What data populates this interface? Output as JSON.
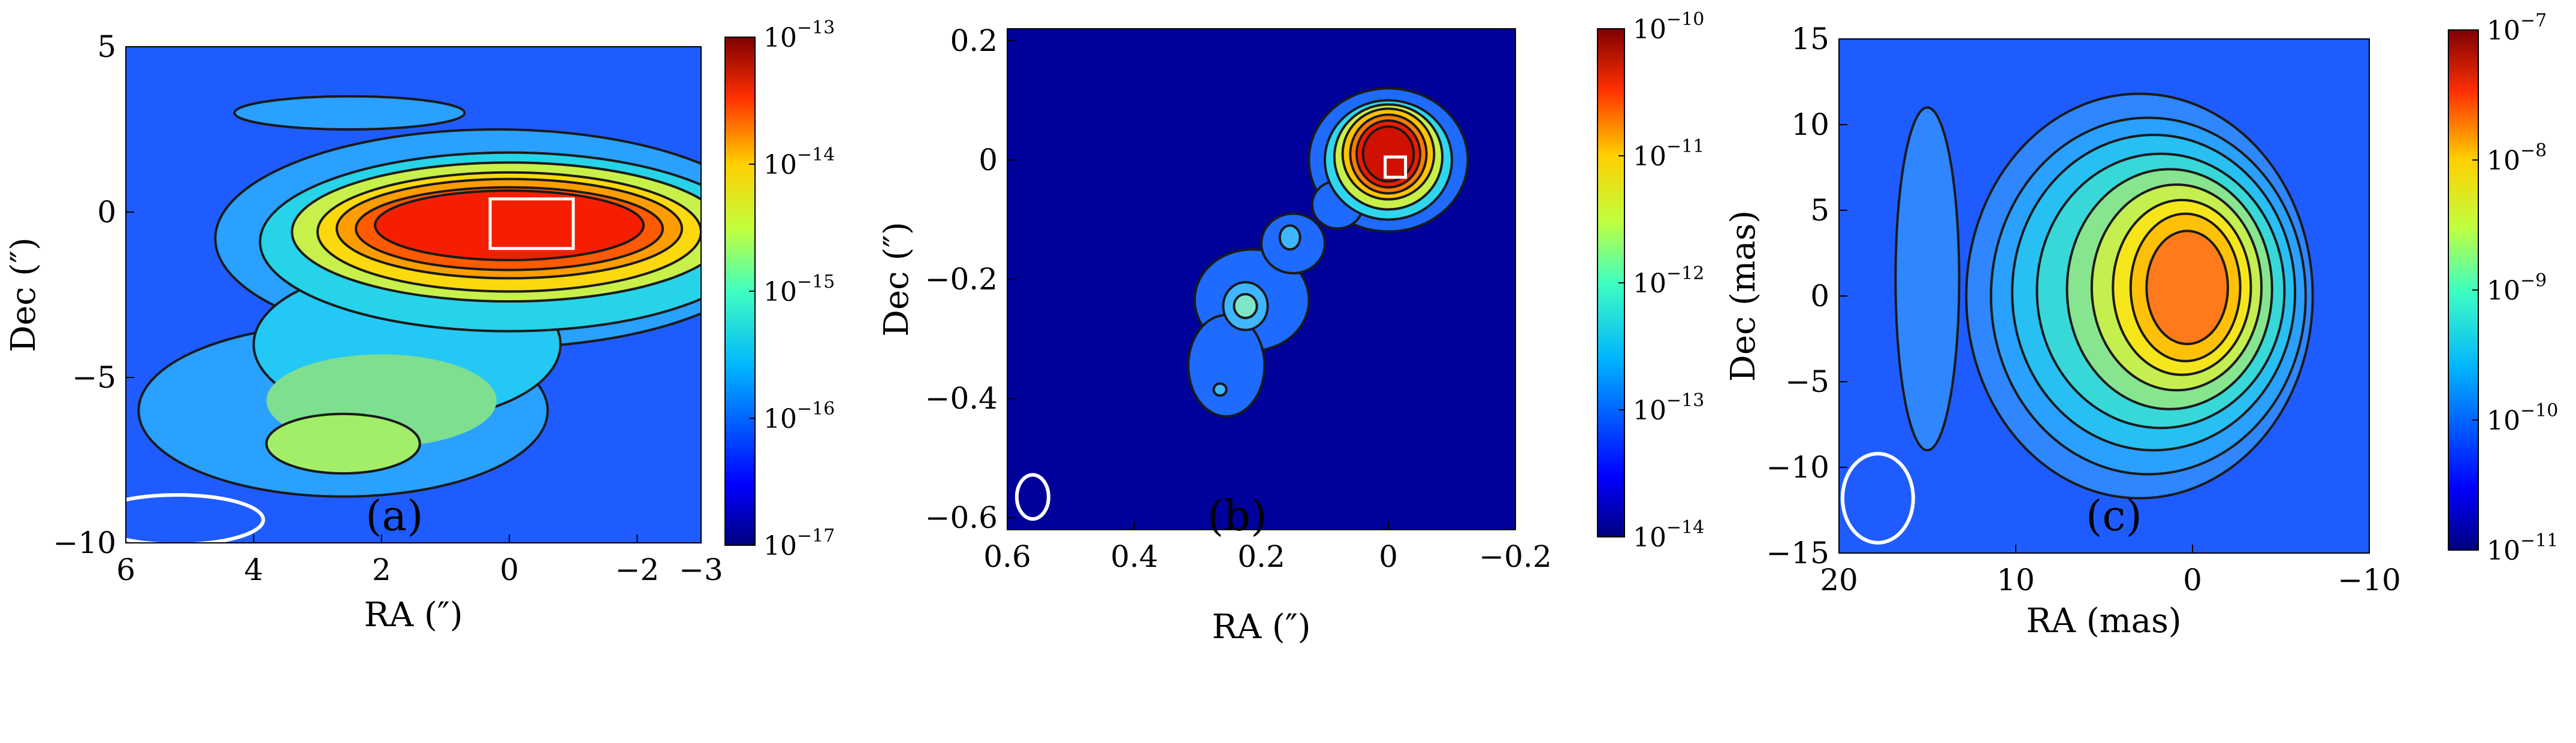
{
  "figure": {
    "panels": [
      {
        "id": "a",
        "label": "(a)"
      },
      {
        "id": "b",
        "label": "(b)"
      },
      {
        "id": "c",
        "label": "(c)"
      }
    ]
  },
  "chart_data": [
    {
      "type": "heatmap",
      "panel": "(a)",
      "xlabel": "RA (″)",
      "ylabel": "Dec (″)",
      "xlim": [
        6,
        -3
      ],
      "ylim": [
        -10,
        5
      ],
      "xticks": [
        6,
        4,
        2,
        0,
        -2,
        -3
      ],
      "xtick_labels": [
        "6",
        "4",
        "2",
        "0",
        "−2",
        "−3"
      ],
      "yticks": [
        5,
        0,
        -5,
        -10
      ],
      "ytick_labels": [
        "5",
        "0",
        "−5",
        "−10"
      ],
      "colorbar": {
        "scale": "log",
        "min_exp": -17,
        "max_exp": -13,
        "exponents": [
          -17,
          -16,
          -15,
          -14,
          -13
        ],
        "base": "10"
      },
      "background_color": "#1f5cff",
      "beam": {
        "cx": 5.2,
        "cy": -9.3,
        "rx": 1.35,
        "ry": 0.75
      },
      "marker_box": {
        "x": 0.3,
        "y": 0.4,
        "w": 1.3,
        "h": 1.5
      },
      "blobs": [
        {
          "cx": 0.2,
          "cy": -0.8,
          "rx": 4.4,
          "ry": 3.3,
          "color": "#2aa0ff",
          "outline": true
        },
        {
          "cx": 2.6,
          "cy": -6.0,
          "rx": 3.2,
          "ry": 2.6,
          "color": "#2aa0ff",
          "outline": true
        },
        {
          "cx": 2.5,
          "cy": 3.0,
          "rx": 1.8,
          "ry": 0.5,
          "color": "#2aa0ff",
          "outline": true
        },
        {
          "cx": 1.6,
          "cy": -4.0,
          "rx": 2.4,
          "ry": 2.3,
          "color": "#24c8f4",
          "outline": true
        },
        {
          "cx": 0.0,
          "cy": -0.9,
          "rx": 3.9,
          "ry": 2.7,
          "color": "#27d3e8",
          "outline": true
        },
        {
          "cx": 2.0,
          "cy": -5.7,
          "rx": 1.8,
          "ry": 1.4,
          "color": "#7ddf8f",
          "outline": false
        },
        {
          "cx": 2.6,
          "cy": -7.0,
          "rx": 1.2,
          "ry": 0.9,
          "color": "#a2ee69",
          "outline": true
        },
        {
          "cx": 0.0,
          "cy": -0.6,
          "rx": 3.4,
          "ry": 2.1,
          "color": "#c8f04a",
          "outline": true
        },
        {
          "cx": 0.0,
          "cy": -0.6,
          "rx": 3.0,
          "ry": 1.8,
          "color": "#fbd90c",
          "outline": true
        },
        {
          "cx": 0.0,
          "cy": -0.5,
          "rx": 2.7,
          "ry": 1.5,
          "color": "#ff9d00",
          "outline": true
        },
        {
          "cx": 0.0,
          "cy": -0.5,
          "rx": 2.4,
          "ry": 1.25,
          "color": "#ff5a00",
          "outline": true
        },
        {
          "cx": 0.0,
          "cy": -0.4,
          "rx": 2.1,
          "ry": 1.05,
          "color": "#f51e00",
          "outline": true
        }
      ]
    },
    {
      "type": "heatmap",
      "panel": "(b)",
      "xlabel": "RA (″)",
      "ylabel": "Dec (″)",
      "xlim": [
        0.6,
        -0.2
      ],
      "ylim": [
        -0.62,
        0.22
      ],
      "xticks": [
        0.6,
        0.4,
        0.2,
        0,
        -0.2
      ],
      "xtick_labels": [
        "0.6",
        "0.4",
        "0.2",
        "0",
        "−0.2"
      ],
      "yticks": [
        0.2,
        0,
        -0.2,
        -0.4,
        -0.6
      ],
      "ytick_labels": [
        "0.2",
        "0",
        "−0.2",
        "−0.4",
        "−0.6"
      ],
      "colorbar": {
        "scale": "log",
        "min_exp": -14,
        "max_exp": -10,
        "exponents": [
          -14,
          -13,
          -12,
          -11,
          -10
        ],
        "base": "10"
      },
      "background_color": "#00009a",
      "beam": {
        "cx": 0.56,
        "cy": -0.565,
        "rx": 0.025,
        "ry": 0.037
      },
      "marker_box": {
        "x": 0.005,
        "y": 0.005,
        "w": 0.032,
        "h": 0.034
      },
      "blobs": [
        {
          "cx": 0.0,
          "cy": 0.0,
          "rx": 0.125,
          "ry": 0.12,
          "color": "#1f6bff",
          "outline": true
        },
        {
          "cx": 0.215,
          "cy": -0.235,
          "rx": 0.09,
          "ry": 0.085,
          "color": "#1f6bff",
          "outline": true
        },
        {
          "cx": 0.255,
          "cy": -0.345,
          "rx": 0.06,
          "ry": 0.085,
          "color": "#1f6bff",
          "outline": true
        },
        {
          "cx": 0.15,
          "cy": -0.14,
          "rx": 0.05,
          "ry": 0.05,
          "color": "#1f6bff",
          "outline": true
        },
        {
          "cx": 0.08,
          "cy": -0.075,
          "rx": 0.04,
          "ry": 0.04,
          "color": "#1f6bff",
          "outline": true
        },
        {
          "cx": 0.225,
          "cy": -0.245,
          "rx": 0.035,
          "ry": 0.04,
          "color": "#3fb6ff",
          "outline": true
        },
        {
          "cx": 0.225,
          "cy": -0.245,
          "rx": 0.018,
          "ry": 0.02,
          "color": "#7de6c8",
          "outline": true
        },
        {
          "cx": 0.155,
          "cy": -0.13,
          "rx": 0.016,
          "ry": 0.02,
          "color": "#3fb6ff",
          "outline": true
        },
        {
          "cx": 0.265,
          "cy": -0.385,
          "rx": 0.01,
          "ry": 0.01,
          "color": "#3fb6ff",
          "outline": true
        },
        {
          "cx": 0.0,
          "cy": 0.0,
          "rx": 0.1,
          "ry": 0.1,
          "color": "#2fd6ee",
          "outline": true
        },
        {
          "cx": 0.0,
          "cy": 0.005,
          "rx": 0.085,
          "ry": 0.088,
          "color": "#c8f04a",
          "outline": true
        },
        {
          "cx": 0.0,
          "cy": 0.01,
          "rx": 0.072,
          "ry": 0.076,
          "color": "#ffc400",
          "outline": true
        },
        {
          "cx": 0.0,
          "cy": 0.01,
          "rx": 0.06,
          "ry": 0.066,
          "color": "#ff7a00",
          "outline": true
        },
        {
          "cx": 0.0,
          "cy": 0.01,
          "rx": 0.05,
          "ry": 0.056,
          "color": "#f01a00",
          "outline": true
        },
        {
          "cx": 0.0,
          "cy": 0.01,
          "rx": 0.04,
          "ry": 0.046,
          "color": "#d01000",
          "outline": true
        }
      ]
    },
    {
      "type": "heatmap",
      "panel": "(c)",
      "xlabel": "RA (mas)",
      "ylabel": "Dec (mas)",
      "xlim": [
        20,
        -10
      ],
      "ylim": [
        -15,
        15
      ],
      "xticks": [
        20,
        10,
        0,
        -10
      ],
      "xtick_labels": [
        "20",
        "10",
        "0",
        "−10"
      ],
      "yticks": [
        15,
        10,
        5,
        0,
        -5,
        -10,
        -15
      ],
      "ytick_labels": [
        "15",
        "10",
        "5",
        "0",
        "−5",
        "−10",
        "−15"
      ],
      "colorbar": {
        "scale": "log",
        "min_exp": -11,
        "max_exp": -7,
        "exponents": [
          -11,
          -10,
          -9,
          -8,
          -7
        ],
        "base": "10"
      },
      "background_color": "#1f5cff",
      "beam": {
        "cx": 17.8,
        "cy": -11.8,
        "rx": 2.0,
        "ry": 2.6
      },
      "marker_box": null,
      "blobs": [
        {
          "cx": 15.0,
          "cy": 1.0,
          "rx": 1.8,
          "ry": 10.0,
          "color": "#2f86ff",
          "outline": true
        },
        {
          "cx": 3.0,
          "cy": 0.0,
          "rx": 9.8,
          "ry": 11.8,
          "color": "#2f86ff",
          "outline": true
        },
        {
          "cx": 2.5,
          "cy": 0.0,
          "rx": 8.9,
          "ry": 10.4,
          "color": "#2aa0ff",
          "outline": true
        },
        {
          "cx": 2.2,
          "cy": 0.2,
          "rx": 8.0,
          "ry": 9.2,
          "color": "#28c0f2",
          "outline": true
        },
        {
          "cx": 1.8,
          "cy": 0.3,
          "rx": 7.0,
          "ry": 8.0,
          "color": "#38d8d8",
          "outline": true
        },
        {
          "cx": 1.3,
          "cy": 0.4,
          "rx": 5.8,
          "ry": 7.0,
          "color": "#86e58e",
          "outline": true
        },
        {
          "cx": 0.9,
          "cy": 0.5,
          "rx": 4.8,
          "ry": 6.0,
          "color": "#c5ee4f",
          "outline": true
        },
        {
          "cx": 0.6,
          "cy": 0.5,
          "rx": 3.9,
          "ry": 5.1,
          "color": "#f5e61c",
          "outline": true
        },
        {
          "cx": 0.4,
          "cy": 0.5,
          "rx": 3.1,
          "ry": 4.3,
          "color": "#ffc107",
          "outline": true
        },
        {
          "cx": 0.3,
          "cy": 0.5,
          "rx": 2.3,
          "ry": 3.3,
          "color": "#ff7a1a",
          "outline": true
        }
      ]
    }
  ]
}
